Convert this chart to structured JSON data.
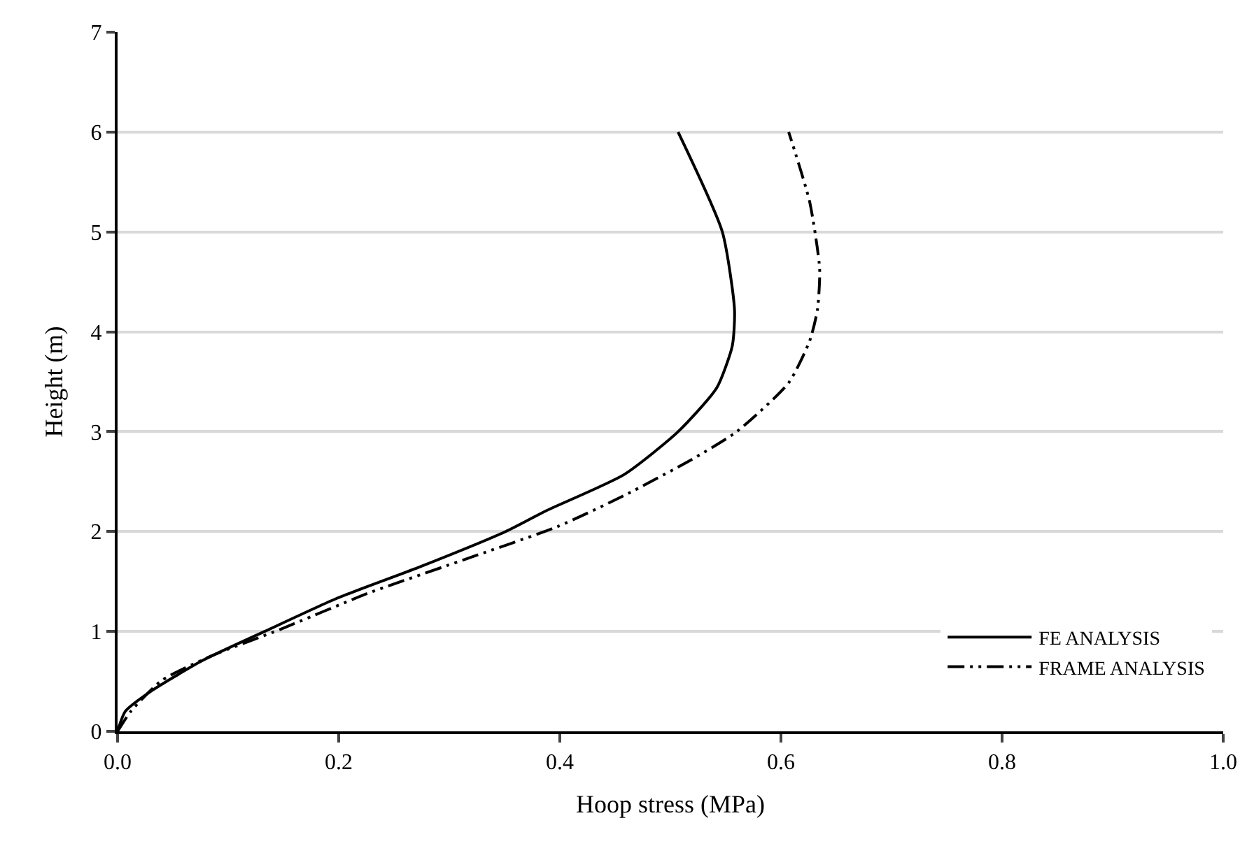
{
  "chart_data": {
    "type": "line",
    "xlabel": "Hoop stress (MPa)",
    "ylabel": "Height (m)",
    "xlim": [
      0,
      1.0
    ],
    "xticks": [
      {
        "value": 0,
        "label": "0.0"
      },
      0.2,
      0.4,
      0.6,
      0.8,
      {
        "value": 1.0,
        "label": "1.0"
      }
    ],
    "ylim": [
      0,
      7
    ],
    "yticks": [
      0,
      1,
      2,
      3,
      4,
      5,
      6,
      7
    ],
    "grid": "y",
    "legend": "bottom right",
    "marker": "none",
    "series": [
      {
        "name": "FE ANALYSIS",
        "color": "#000000",
        "line_style": "solid",
        "x": [
          0,
          0.007,
          0.03,
          0.077,
          0.133,
          0.198,
          0.272,
          0.351,
          0.388,
          0.458,
          0.507,
          0.542,
          0.556,
          0.558,
          0.547,
          0.507
        ],
        "values": [
          0,
          0.2,
          0.4,
          0.71,
          1.0,
          1.33,
          1.64,
          2.0,
          2.21,
          2.57,
          3.0,
          3.44,
          3.86,
          4.22,
          5.0,
          6.0
        ]
      },
      {
        "name": "FRAME ANALYSIS",
        "color": "#000000",
        "line_style": "dashed",
        "x": [
          0,
          0.012,
          0.04,
          0.086,
          0.147,
          0.226,
          0.319,
          0.398,
          0.458,
          0.519,
          0.56,
          0.607,
          0.626,
          0.633,
          0.635,
          0.626,
          0.607
        ],
        "values": [
          0,
          0.2,
          0.51,
          0.76,
          1.02,
          1.38,
          1.74,
          2.05,
          2.36,
          2.72,
          3.0,
          3.49,
          3.91,
          4.22,
          4.63,
          5.3,
          6.0
        ]
      }
    ]
  }
}
